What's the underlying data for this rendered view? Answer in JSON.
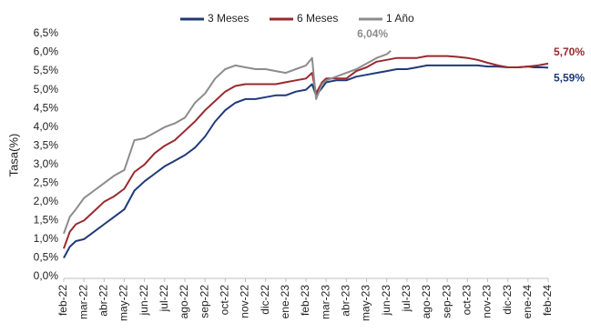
{
  "chart_data": {
    "type": "line",
    "title": "",
    "xlabel": "",
    "ylabel": "Tasa(%)",
    "ylim": [
      0,
      6.5
    ],
    "yticks": [
      "0,0%",
      "0,5%",
      "1,0%",
      "1,5%",
      "2,0%",
      "2,5%",
      "3,0%",
      "3,5%",
      "4,0%",
      "4,5%",
      "5,0%",
      "5,5%",
      "6,0%",
      "6,5%"
    ],
    "xticks": [
      "feb-22",
      "mar-22",
      "abr-22",
      "may-22",
      "jun-22",
      "jul-22",
      "ago-22",
      "sep-22",
      "oct-22",
      "nov-22",
      "dic-22",
      "ene-23",
      "feb-23",
      "mar-23",
      "abr-23",
      "may-23",
      "jun-23",
      "jul-23",
      "ago-23",
      "sep-23",
      "oct-23",
      "nov-23",
      "dic-23",
      "ene-24",
      "feb-24"
    ],
    "legend_position": "top-center",
    "grid": false,
    "series": [
      {
        "name": "3 Meses",
        "color": "#1f3a7a",
        "end_label": "5,59%",
        "points": [
          [
            0,
            0.5
          ],
          [
            0.3,
            0.8
          ],
          [
            0.6,
            0.95
          ],
          [
            1,
            1.0
          ],
          [
            1.5,
            1.2
          ],
          [
            2,
            1.4
          ],
          [
            2.5,
            1.6
          ],
          [
            3,
            1.8
          ],
          [
            3.5,
            2.3
          ],
          [
            4,
            2.55
          ],
          [
            4.5,
            2.75
          ],
          [
            5,
            2.95
          ],
          [
            5.5,
            3.1
          ],
          [
            6,
            3.25
          ],
          [
            6.5,
            3.45
          ],
          [
            7,
            3.75
          ],
          [
            7.5,
            4.15
          ],
          [
            8,
            4.45
          ],
          [
            8.5,
            4.65
          ],
          [
            9,
            4.75
          ],
          [
            9.5,
            4.75
          ],
          [
            10,
            4.8
          ],
          [
            10.5,
            4.85
          ],
          [
            11,
            4.85
          ],
          [
            11.5,
            4.95
          ],
          [
            12,
            5.0
          ],
          [
            12.3,
            5.15
          ],
          [
            12.5,
            4.85
          ],
          [
            12.8,
            5.05
          ],
          [
            13,
            5.2
          ],
          [
            13.5,
            5.25
          ],
          [
            14,
            5.25
          ],
          [
            14.5,
            5.35
          ],
          [
            15,
            5.4
          ],
          [
            15.5,
            5.45
          ],
          [
            16,
            5.5
          ],
          [
            16.5,
            5.55
          ],
          [
            17,
            5.55
          ],
          [
            17.5,
            5.6
          ],
          [
            18,
            5.65
          ],
          [
            18.5,
            5.65
          ],
          [
            19,
            5.65
          ],
          [
            19.5,
            5.65
          ],
          [
            20,
            5.65
          ],
          [
            20.5,
            5.65
          ],
          [
            21,
            5.62
          ],
          [
            21.5,
            5.62
          ],
          [
            22,
            5.6
          ],
          [
            22.5,
            5.6
          ],
          [
            23,
            5.62
          ],
          [
            23.3,
            5.6
          ],
          [
            23.7,
            5.6
          ],
          [
            24,
            5.59
          ]
        ]
      },
      {
        "name": "6 Meses",
        "color": "#9a2a2e",
        "end_label": "5,70%",
        "points": [
          [
            0,
            0.75
          ],
          [
            0.3,
            1.2
          ],
          [
            0.6,
            1.4
          ],
          [
            1,
            1.5
          ],
          [
            1.5,
            1.75
          ],
          [
            2,
            2.0
          ],
          [
            2.5,
            2.15
          ],
          [
            3,
            2.35
          ],
          [
            3.5,
            2.8
          ],
          [
            4,
            3.0
          ],
          [
            4.5,
            3.3
          ],
          [
            5,
            3.5
          ],
          [
            5.5,
            3.65
          ],
          [
            6,
            3.9
          ],
          [
            6.5,
            4.15
          ],
          [
            7,
            4.45
          ],
          [
            7.5,
            4.7
          ],
          [
            8,
            4.95
          ],
          [
            8.5,
            5.1
          ],
          [
            9,
            5.15
          ],
          [
            9.5,
            5.15
          ],
          [
            10,
            5.15
          ],
          [
            10.5,
            5.15
          ],
          [
            11,
            5.2
          ],
          [
            11.5,
            5.25
          ],
          [
            12,
            5.3
          ],
          [
            12.3,
            5.45
          ],
          [
            12.5,
            4.9
          ],
          [
            12.8,
            5.2
          ],
          [
            13,
            5.3
          ],
          [
            13.5,
            5.3
          ],
          [
            14,
            5.3
          ],
          [
            14.5,
            5.5
          ],
          [
            15,
            5.6
          ],
          [
            15.5,
            5.75
          ],
          [
            16,
            5.8
          ],
          [
            16.5,
            5.85
          ],
          [
            17,
            5.85
          ],
          [
            17.5,
            5.85
          ],
          [
            18,
            5.9
          ],
          [
            18.5,
            5.9
          ],
          [
            19,
            5.9
          ],
          [
            19.5,
            5.88
          ],
          [
            20,
            5.85
          ],
          [
            20.5,
            5.8
          ],
          [
            21,
            5.72
          ],
          [
            21.5,
            5.65
          ],
          [
            22,
            5.6
          ],
          [
            22.5,
            5.6
          ],
          [
            23,
            5.62
          ],
          [
            23.5,
            5.65
          ],
          [
            24,
            5.7
          ]
        ]
      },
      {
        "name": "1 Año",
        "color": "#8c8c8c",
        "end_label": "6,04%",
        "points": [
          [
            0,
            1.15
          ],
          [
            0.3,
            1.6
          ],
          [
            0.6,
            1.8
          ],
          [
            1,
            2.1
          ],
          [
            1.5,
            2.3
          ],
          [
            2,
            2.5
          ],
          [
            2.5,
            2.7
          ],
          [
            3,
            2.85
          ],
          [
            3.5,
            3.65
          ],
          [
            4,
            3.7
          ],
          [
            4.5,
            3.85
          ],
          [
            5,
            4.0
          ],
          [
            5.5,
            4.1
          ],
          [
            6,
            4.25
          ],
          [
            6.5,
            4.65
          ],
          [
            7,
            4.9
          ],
          [
            7.5,
            5.3
          ],
          [
            8,
            5.55
          ],
          [
            8.5,
            5.65
          ],
          [
            9,
            5.6
          ],
          [
            9.5,
            5.55
          ],
          [
            10,
            5.55
          ],
          [
            10.5,
            5.5
          ],
          [
            11,
            5.45
          ],
          [
            11.5,
            5.55
          ],
          [
            12,
            5.65
          ],
          [
            12.3,
            5.85
          ],
          [
            12.5,
            4.75
          ],
          [
            12.8,
            5.15
          ],
          [
            13,
            5.25
          ],
          [
            13.5,
            5.35
          ],
          [
            14,
            5.45
          ],
          [
            14.5,
            5.55
          ],
          [
            15,
            5.7
          ],
          [
            15.5,
            5.85
          ],
          [
            16,
            5.95
          ],
          [
            16.2,
            6.04
          ]
        ]
      }
    ]
  }
}
